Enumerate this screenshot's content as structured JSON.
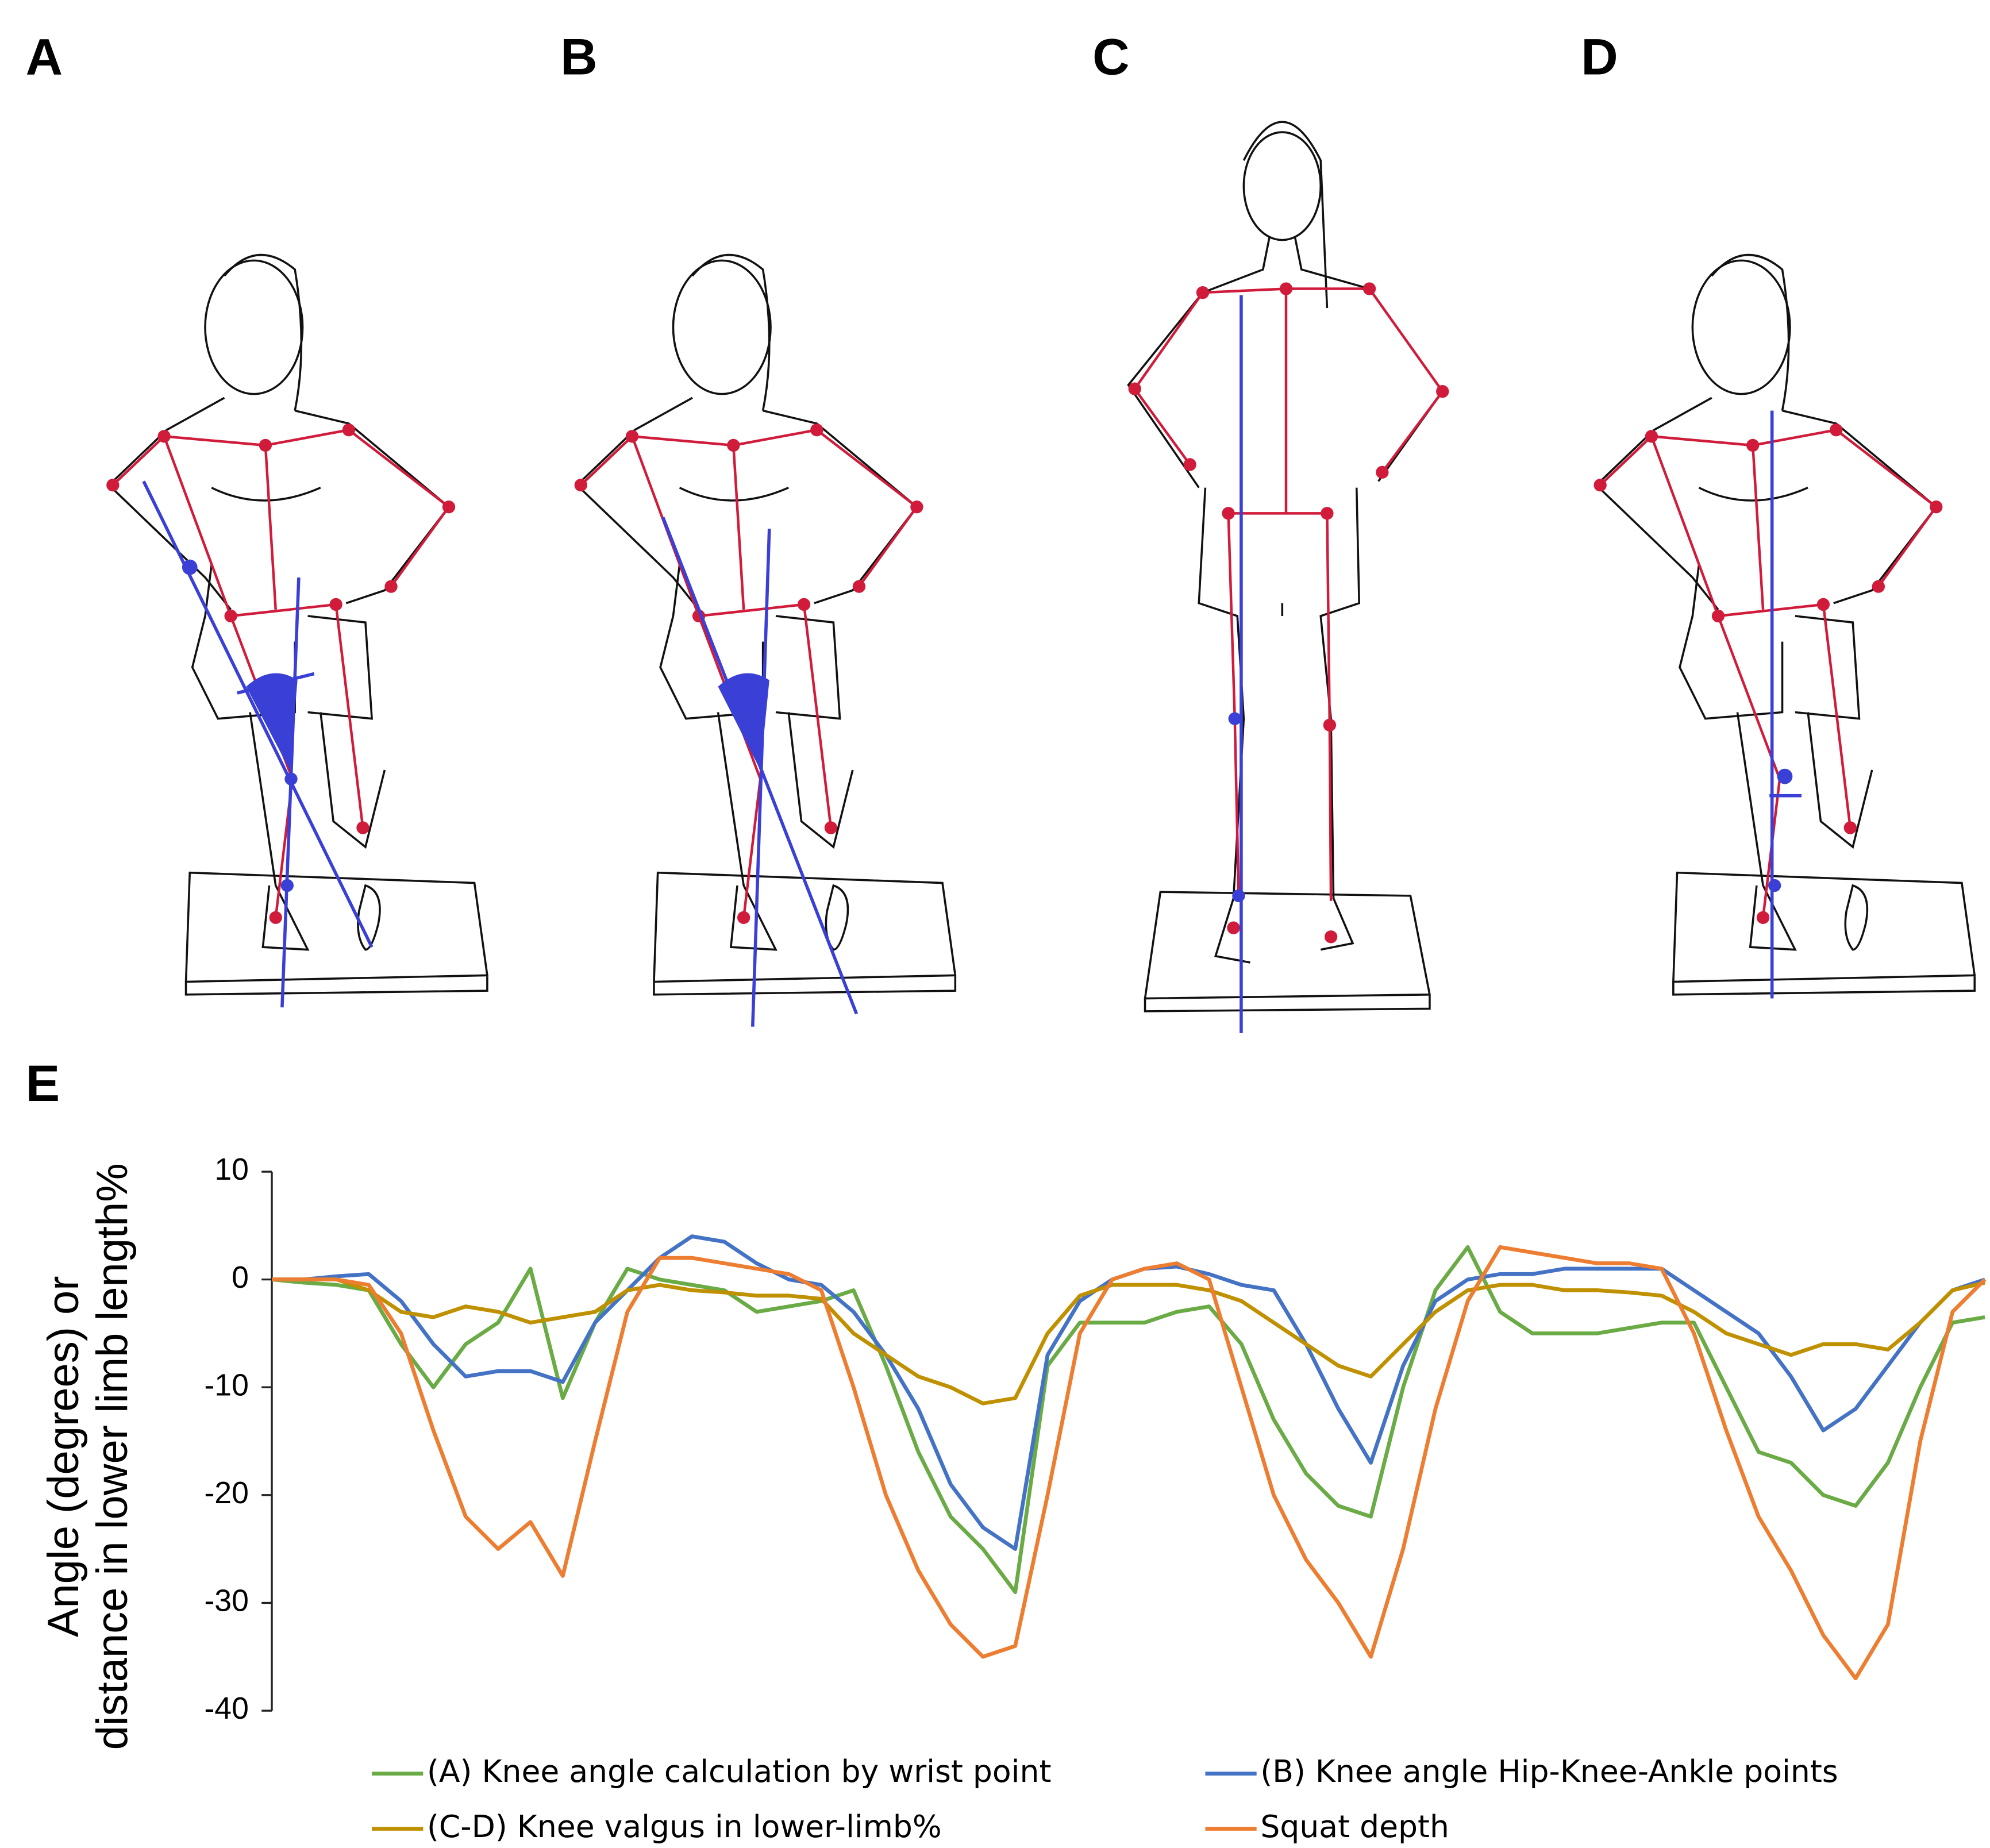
{
  "panel_labels": [
    "A",
    "B",
    "C",
    "D",
    "E"
  ],
  "chart_data": {
    "type": "line",
    "ylabel": [
      "Angle (degrees) or",
      "distance in lower limb length%"
    ],
    "ylim": [
      -40,
      10
    ],
    "yticks": [
      -40,
      -30,
      -20,
      -10,
      0,
      10
    ],
    "series": [
      {
        "name": "(A) Knee angle calculation  by wrist point",
        "color": "#6aab46",
        "values": [
          0,
          -0.3,
          -0.5,
          -1,
          -6,
          -10,
          -6,
          -4,
          1,
          -11,
          -4,
          1,
          0,
          -0.5,
          -1,
          -3,
          -2.5,
          -2,
          -1,
          -8,
          -16,
          -22,
          -25,
          -29,
          -8,
          -4,
          -4,
          -4,
          -3,
          -2.5,
          -6,
          -13,
          -18,
          -21,
          -22,
          -10,
          -1,
          3,
          -3,
          -5,
          -5,
          -5,
          -4.5,
          -4,
          -4,
          -10,
          -16,
          -17,
          -20,
          -21,
          -17,
          -10,
          -4,
          -3.5
        ]
      },
      {
        "name": "(B) Knee angle Hip-Knee-Ankle points",
        "color": "#4472c4",
        "values": [
          0,
          0,
          0.3,
          0.5,
          -2,
          -6,
          -9,
          -8.5,
          -8.5,
          -9.5,
          -4,
          -1,
          2,
          4,
          3.5,
          1.5,
          0,
          -0.5,
          -3,
          -7,
          -12,
          -19,
          -23,
          -25,
          -7,
          -2,
          0,
          1,
          1.2,
          0.5,
          -0.5,
          -1,
          -6,
          -12,
          -17,
          -8,
          -2,
          0,
          0.5,
          0.5,
          1,
          1,
          1,
          1,
          -1,
          -3,
          -5,
          -9,
          -14,
          -12,
          -8,
          -4,
          -1,
          0
        ]
      },
      {
        "name": "(C-D) Knee  valgus in lower-limb%",
        "color": "#bf9000",
        "values": [
          0,
          0,
          0,
          -1,
          -3,
          -3.5,
          -2.5,
          -3,
          -4,
          -3.5,
          -3,
          -1,
          -0.5,
          -1,
          -1.2,
          -1.5,
          -1.5,
          -1.8,
          -5,
          -7,
          -9,
          -10,
          -11.5,
          -11,
          -5,
          -1.5,
          -0.5,
          -0.5,
          -0.5,
          -1,
          -2,
          -4,
          -6,
          -8,
          -9,
          -6,
          -3,
          -1,
          -0.5,
          -0.5,
          -1,
          -1,
          -1.2,
          -1.5,
          -3,
          -5,
          -6,
          -7,
          -6,
          -6,
          -6.5,
          -4,
          -1,
          -0.3
        ]
      },
      {
        "name": "Squat depth",
        "color": "#ed7d31",
        "values": [
          0,
          0,
          0,
          -0.5,
          -5,
          -14,
          -22,
          -25,
          -22.5,
          -27.5,
          -15,
          -3,
          2,
          2,
          1.5,
          1,
          0.5,
          -1,
          -10,
          -20,
          -27,
          -32,
          -35,
          -34,
          -20,
          -5,
          0,
          1,
          1.5,
          0,
          -10,
          -20,
          -26,
          -30,
          -35,
          -25,
          -12,
          -2,
          3,
          2.5,
          2,
          1.5,
          1.5,
          1,
          -5,
          -14,
          -22,
          -27,
          -33,
          -37,
          -32,
          -15,
          -3,
          0
        ]
      }
    ]
  }
}
